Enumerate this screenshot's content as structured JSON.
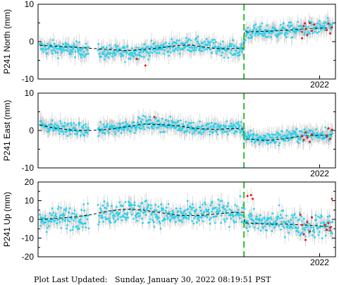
{
  "footer": {
    "label": "Plot Last Updated:",
    "value": "Sunday, January 30, 2022 08:19:51 PST"
  },
  "chart_data": [
    {
      "type": "scatter",
      "ylabel": "P241 North (mm)",
      "ylim": [
        -10,
        10
      ],
      "yticks": [
        -10,
        0,
        10
      ],
      "xtick_label": "2022",
      "xlim": [
        2014.0,
        2022.45
      ],
      "event_line_x": 2019.85,
      "gaps": [
        [
          2015.45,
          2015.7
        ]
      ],
      "series": [
        {
          "role": "daily",
          "color": "#22d3ee",
          "trend": [
            [
              2014.05,
              -1.6
            ],
            [
              2015.4,
              -2.3
            ],
            [
              2015.75,
              -2.8
            ],
            [
              2016.5,
              -3.0
            ],
            [
              2017.5,
              -1.8
            ],
            [
              2018.3,
              -0.8
            ],
            [
              2019.0,
              -1.5
            ],
            [
              2019.8,
              -2.4
            ],
            [
              2019.9,
              2.4
            ],
            [
              2020.8,
              2.8
            ],
            [
              2021.6,
              3.3
            ],
            [
              2022.35,
              4.0
            ]
          ],
          "noise": 1.4
        },
        {
          "role": "rapid",
          "color": "#ee1111",
          "points": [
            [
              2017.05,
              -6.4
            ],
            [
              2016.8,
              -4.6
            ],
            [
              2021.5,
              2.6
            ],
            [
              2021.55,
              4.2
            ],
            [
              2021.6,
              3.4
            ],
            [
              2021.65,
              1.8
            ],
            [
              2021.72,
              5.0
            ],
            [
              2021.78,
              2.9
            ],
            [
              2021.85,
              4.6
            ],
            [
              2022.2,
              3.1
            ],
            [
              2022.25,
              4.8
            ],
            [
              2022.3,
              2.2
            ],
            [
              2022.35,
              3.8
            ],
            [
              2021.5,
              0.9
            ],
            [
              2021.58,
              4.9
            ]
          ]
        },
        {
          "role": "model",
          "color": "#000000",
          "points": [
            [
              2014.05,
              -1.0
            ],
            [
              2014.5,
              -1.2
            ],
            [
              2015.0,
              -1.5
            ],
            [
              2015.5,
              -1.8
            ],
            [
              2016.0,
              -2.1
            ],
            [
              2016.5,
              -2.4
            ],
            [
              2017.0,
              -2.1
            ],
            [
              2017.5,
              -1.6
            ],
            [
              2018.0,
              -1.0
            ],
            [
              2018.3,
              -0.9
            ],
            [
              2018.6,
              -1.3
            ],
            [
              2019.0,
              -1.8
            ],
            [
              2019.4,
              -1.9
            ],
            [
              2019.84,
              -1.7
            ],
            [
              2019.86,
              2.6
            ],
            [
              2020.3,
              2.7
            ],
            [
              2020.8,
              2.9
            ],
            [
              2021.3,
              3.2
            ],
            [
              2021.8,
              3.5
            ],
            [
              2022.35,
              3.7
            ]
          ]
        }
      ]
    },
    {
      "type": "scatter",
      "ylabel": "P241 East (mm)",
      "ylim": [
        -10,
        10
      ],
      "yticks": [
        -10,
        0,
        10
      ],
      "xtick_label": "2022",
      "xlim": [
        2014.0,
        2022.45
      ],
      "event_line_x": 2019.85,
      "gaps": [
        [
          2015.45,
          2015.7
        ]
      ],
      "series": [
        {
          "role": "daily",
          "color": "#22d3ee",
          "trend": [
            [
              2014.05,
              1.6
            ],
            [
              2014.6,
              0.6
            ],
            [
              2015.4,
              0.0
            ],
            [
              2015.75,
              0.2
            ],
            [
              2016.3,
              0.8
            ],
            [
              2017.0,
              1.9
            ],
            [
              2017.8,
              1.5
            ],
            [
              2018.6,
              0.5
            ],
            [
              2019.3,
              0.6
            ],
            [
              2019.8,
              0.8
            ],
            [
              2019.9,
              -2.0
            ],
            [
              2020.5,
              -2.2
            ],
            [
              2021.3,
              -1.3
            ],
            [
              2022.35,
              -0.9
            ]
          ],
          "noise": 1.2
        },
        {
          "role": "rapid",
          "color": "#ee1111",
          "points": [
            [
              2017.3,
              3.6
            ],
            [
              2021.5,
              -1.5
            ],
            [
              2021.55,
              -2.5
            ],
            [
              2021.6,
              -0.5
            ],
            [
              2021.65,
              -1.9
            ],
            [
              2021.72,
              -3.0
            ],
            [
              2021.78,
              -1.0
            ],
            [
              2022.2,
              -1.6
            ],
            [
              2022.25,
              0.6
            ],
            [
              2022.3,
              -2.2
            ],
            [
              2022.35,
              0.2
            ]
          ]
        },
        {
          "role": "model",
          "color": "#000000",
          "points": [
            [
              2014.05,
              1.5
            ],
            [
              2014.5,
              0.6
            ],
            [
              2015.0,
              0.1
            ],
            [
              2015.5,
              0.0
            ],
            [
              2016.0,
              0.3
            ],
            [
              2016.5,
              1.0
            ],
            [
              2017.0,
              1.7
            ],
            [
              2017.5,
              1.6
            ],
            [
              2018.0,
              1.2
            ],
            [
              2018.5,
              0.5
            ],
            [
              2019.0,
              0.3
            ],
            [
              2019.5,
              0.5
            ],
            [
              2019.84,
              0.4
            ],
            [
              2019.86,
              -2.2
            ],
            [
              2020.5,
              -2.7
            ],
            [
              2021.0,
              -2.2
            ],
            [
              2021.5,
              -1.5
            ],
            [
              2022.0,
              -1.3
            ],
            [
              2022.35,
              -1.1
            ]
          ]
        }
      ]
    },
    {
      "type": "scatter",
      "ylabel": "P241 Up (mm)",
      "ylim": [
        -20,
        20
      ],
      "yticks": [
        -20,
        -10,
        0,
        10,
        20
      ],
      "xtick_label": "2022",
      "xlim": [
        2014.0,
        2022.45
      ],
      "event_line_x": 2019.85,
      "gaps": [
        [
          2015.45,
          2015.7
        ]
      ],
      "series": [
        {
          "role": "daily",
          "color": "#22d3ee",
          "trend": [
            [
              2014.05,
              0.0
            ],
            [
              2015.0,
              1.0
            ],
            [
              2015.4,
              2.0
            ],
            [
              2015.75,
              2.5
            ],
            [
              2016.4,
              5.0
            ],
            [
              2017.2,
              4.0
            ],
            [
              2017.8,
              1.5
            ],
            [
              2018.5,
              2.5
            ],
            [
              2019.3,
              4.0
            ],
            [
              2019.8,
              3.5
            ],
            [
              2019.9,
              -1.0
            ],
            [
              2020.5,
              -2.0
            ],
            [
              2021.0,
              -1.0
            ],
            [
              2021.5,
              -3.0
            ],
            [
              2022.35,
              -3.5
            ]
          ],
          "noise": 4.5
        },
        {
          "role": "rapid",
          "color": "#ee1111",
          "points": [
            [
              2019.95,
              12.5
            ],
            [
              2020.05,
              13.0
            ],
            [
              2020.1,
              11.0
            ],
            [
              2021.45,
              2.5
            ],
            [
              2021.5,
              -3.0
            ],
            [
              2021.55,
              -8.0
            ],
            [
              2021.6,
              -11.0
            ],
            [
              2021.65,
              -1.5
            ],
            [
              2021.72,
              -6.5
            ],
            [
              2021.78,
              1.0
            ],
            [
              2022.15,
              -3.0
            ],
            [
              2022.2,
              -5.5
            ],
            [
              2022.25,
              -2.0
            ],
            [
              2022.3,
              -6.0
            ],
            [
              2022.35,
              11.0
            ],
            [
              2022.3,
              -4.5
            ]
          ]
        },
        {
          "role": "model",
          "color": "#000000",
          "points": [
            [
              2014.05,
              0.0
            ],
            [
              2014.5,
              0.5
            ],
            [
              2015.0,
              1.3
            ],
            [
              2015.5,
              2.5
            ],
            [
              2016.0,
              4.5
            ],
            [
              2016.5,
              5.5
            ],
            [
              2017.0,
              5.0
            ],
            [
              2017.5,
              3.5
            ],
            [
              2018.0,
              2.2
            ],
            [
              2018.5,
              2.0
            ],
            [
              2019.0,
              2.8
            ],
            [
              2019.5,
              3.6
            ],
            [
              2019.84,
              3.8
            ],
            [
              2019.86,
              -1.8
            ],
            [
              2020.5,
              -2.5
            ],
            [
              2021.0,
              -2.5
            ],
            [
              2021.5,
              -3.0
            ],
            [
              2022.0,
              -3.5
            ],
            [
              2022.35,
              -4.0
            ]
          ]
        }
      ]
    }
  ]
}
